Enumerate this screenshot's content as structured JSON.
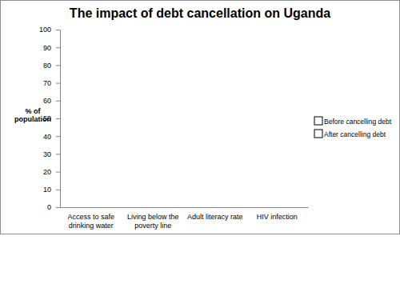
{
  "chart_data": {
    "type": "bar",
    "title": "The impact of debt cancellation on Uganda",
    "ylabel": "% of population",
    "categories": [
      "Access to safe drinking water",
      "Living below the poverty line",
      "Adult literacy rate",
      "HIV infection"
    ],
    "series": [
      {
        "name": "Before cancelling debt",
        "color": "#4f81bd",
        "values": [
          0,
          0,
          0,
          0
        ]
      },
      {
        "name": "After cancelling debt",
        "color": "#c0504d",
        "values": [
          0,
          0,
          0,
          0
        ]
      }
    ],
    "ylim": [
      0,
      100
    ],
    "yticks": [
      0,
      10,
      20,
      30,
      40,
      50,
      60,
      70,
      80,
      90,
      100
    ],
    "grid": false,
    "legend": "right"
  }
}
